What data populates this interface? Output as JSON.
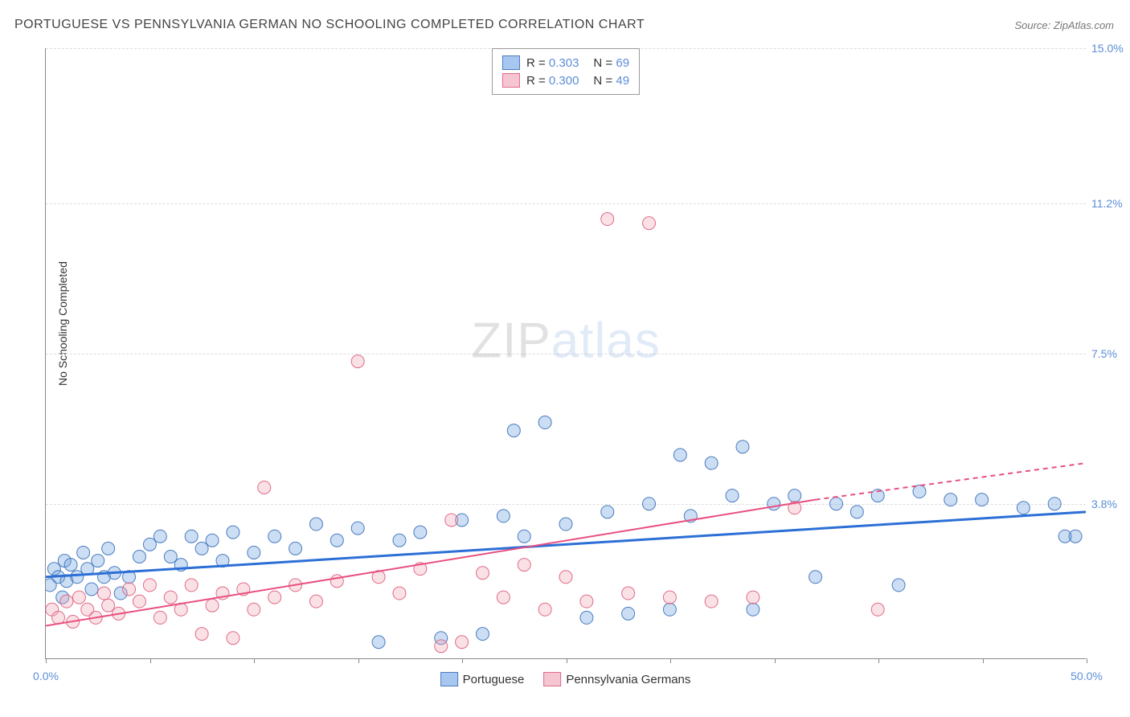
{
  "title": "PORTUGUESE VS PENNSYLVANIA GERMAN NO SCHOOLING COMPLETED CORRELATION CHART",
  "source": "Source: ZipAtlas.com",
  "y_axis_label": "No Schooling Completed",
  "chart": {
    "type": "scatter",
    "xlim": [
      0,
      50
    ],
    "ylim": [
      0,
      15
    ],
    "x_ticks": [
      0,
      5,
      10,
      15,
      20,
      25,
      30,
      35,
      40,
      45,
      50
    ],
    "x_tick_labels": {
      "0": "0.0%",
      "50": "50.0%"
    },
    "y_gridlines": [
      3.8,
      7.5,
      11.2,
      15.0
    ],
    "y_tick_labels": [
      "3.8%",
      "7.5%",
      "11.2%",
      "15.0%"
    ],
    "background_color": "#ffffff",
    "grid_color": "#dddddd",
    "axis_color": "#888888",
    "marker_radius": 8,
    "marker_fill_opacity": 0.35,
    "series": [
      {
        "name": "Portuguese",
        "color": "#6da0e0",
        "stroke": "#4a7cc0",
        "R": "0.303",
        "N": "69",
        "trend": {
          "x1": 0,
          "y1": 2.0,
          "x2": 50,
          "y2": 3.6,
          "stroke": "#2c6fd6",
          "width": 3
        },
        "points": [
          [
            0.2,
            1.8
          ],
          [
            0.4,
            2.2
          ],
          [
            0.6,
            2.0
          ],
          [
            0.8,
            1.5
          ],
          [
            0.9,
            2.4
          ],
          [
            1.0,
            1.9
          ],
          [
            1.2,
            2.3
          ],
          [
            1.5,
            2.0
          ],
          [
            1.8,
            2.6
          ],
          [
            2.0,
            2.2
          ],
          [
            2.2,
            1.7
          ],
          [
            2.5,
            2.4
          ],
          [
            2.8,
            2.0
          ],
          [
            3.0,
            2.7
          ],
          [
            3.3,
            2.1
          ],
          [
            3.6,
            1.6
          ],
          [
            4.0,
            2.0
          ],
          [
            4.5,
            2.5
          ],
          [
            5.0,
            2.8
          ],
          [
            5.5,
            3.0
          ],
          [
            6.0,
            2.5
          ],
          [
            6.5,
            2.3
          ],
          [
            7.0,
            3.0
          ],
          [
            7.5,
            2.7
          ],
          [
            8.0,
            2.9
          ],
          [
            8.5,
            2.4
          ],
          [
            9.0,
            3.1
          ],
          [
            10.0,
            2.6
          ],
          [
            11.0,
            3.0
          ],
          [
            12.0,
            2.7
          ],
          [
            13.0,
            3.3
          ],
          [
            14.0,
            2.9
          ],
          [
            15.0,
            3.2
          ],
          [
            16.0,
            0.4
          ],
          [
            17.0,
            2.9
          ],
          [
            18.0,
            3.1
          ],
          [
            19.0,
            0.5
          ],
          [
            20.0,
            3.4
          ],
          [
            21.0,
            0.6
          ],
          [
            22.0,
            3.5
          ],
          [
            22.5,
            5.6
          ],
          [
            23.0,
            3.0
          ],
          [
            24.0,
            5.8
          ],
          [
            25.0,
            3.3
          ],
          [
            26.0,
            1.0
          ],
          [
            27.0,
            3.6
          ],
          [
            28.0,
            1.1
          ],
          [
            29.0,
            3.8
          ],
          [
            30.0,
            1.2
          ],
          [
            30.5,
            5.0
          ],
          [
            31.0,
            3.5
          ],
          [
            32.0,
            4.8
          ],
          [
            33.0,
            4.0
          ],
          [
            33.5,
            5.2
          ],
          [
            34.0,
            1.2
          ],
          [
            35.0,
            3.8
          ],
          [
            36.0,
            4.0
          ],
          [
            37.0,
            2.0
          ],
          [
            38.0,
            3.8
          ],
          [
            39.0,
            3.6
          ],
          [
            40.0,
            4.0
          ],
          [
            41.0,
            1.8
          ],
          [
            42.0,
            4.1
          ],
          [
            43.5,
            3.9
          ],
          [
            45.0,
            3.9
          ],
          [
            47.0,
            3.7
          ],
          [
            48.5,
            3.8
          ],
          [
            49.0,
            3.0
          ],
          [
            49.5,
            3.0
          ]
        ]
      },
      {
        "name": "Pennsylvania Germans",
        "color": "#f0a8b8",
        "stroke": "#e06b88",
        "R": "0.300",
        "N": "49",
        "trend": {
          "x1": 0,
          "y1": 0.8,
          "x2": 37,
          "y2": 3.9,
          "dash_from": 37,
          "x3": 50,
          "y3": 4.8,
          "stroke": "#e84f80",
          "width": 2
        },
        "points": [
          [
            0.3,
            1.2
          ],
          [
            0.6,
            1.0
          ],
          [
            1.0,
            1.4
          ],
          [
            1.3,
            0.9
          ],
          [
            1.6,
            1.5
          ],
          [
            2.0,
            1.2
          ],
          [
            2.4,
            1.0
          ],
          [
            2.8,
            1.6
          ],
          [
            3.0,
            1.3
          ],
          [
            3.5,
            1.1
          ],
          [
            4.0,
            1.7
          ],
          [
            4.5,
            1.4
          ],
          [
            5.0,
            1.8
          ],
          [
            5.5,
            1.0
          ],
          [
            6.0,
            1.5
          ],
          [
            6.5,
            1.2
          ],
          [
            7.0,
            1.8
          ],
          [
            7.5,
            0.6
          ],
          [
            8.0,
            1.3
          ],
          [
            8.5,
            1.6
          ],
          [
            9.0,
            0.5
          ],
          [
            9.5,
            1.7
          ],
          [
            10.0,
            1.2
          ],
          [
            10.5,
            4.2
          ],
          [
            11.0,
            1.5
          ],
          [
            12.0,
            1.8
          ],
          [
            13.0,
            1.4
          ],
          [
            14.0,
            1.9
          ],
          [
            15.0,
            7.3
          ],
          [
            16.0,
            2.0
          ],
          [
            17.0,
            1.6
          ],
          [
            18.0,
            2.2
          ],
          [
            19.0,
            0.3
          ],
          [
            19.5,
            3.4
          ],
          [
            20.0,
            0.4
          ],
          [
            21.0,
            2.1
          ],
          [
            22.0,
            1.5
          ],
          [
            23.0,
            2.3
          ],
          [
            24.0,
            1.2
          ],
          [
            25.0,
            2.0
          ],
          [
            26.0,
            1.4
          ],
          [
            27.0,
            10.8
          ],
          [
            28.0,
            1.6
          ],
          [
            29.0,
            10.7
          ],
          [
            30.0,
            1.5
          ],
          [
            32.0,
            1.4
          ],
          [
            34.0,
            1.5
          ],
          [
            36.0,
            3.7
          ],
          [
            40.0,
            1.2
          ]
        ]
      }
    ]
  },
  "watermark": {
    "zip": "ZIP",
    "atlas": "atlas"
  },
  "bottom_legend": [
    {
      "label": "Portuguese",
      "fill": "#a8c7f0",
      "stroke": "#4a7cc0"
    },
    {
      "label": "Pennsylvania Germans",
      "fill": "#f5c5d2",
      "stroke": "#e06b88"
    }
  ],
  "stats_box": {
    "rows": [
      {
        "swatch_fill": "#a8c7f0",
        "swatch_stroke": "#4a7cc0",
        "R_label": "R =",
        "R": "0.303",
        "N_label": "N =",
        "N": "69"
      },
      {
        "swatch_fill": "#f5c5d2",
        "swatch_stroke": "#e06b88",
        "R_label": "R =",
        "R": "0.300",
        "N_label": "N =",
        "N": "49"
      }
    ]
  }
}
